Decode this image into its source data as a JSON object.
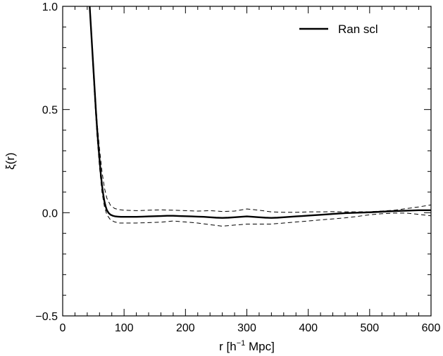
{
  "chart_data": {
    "type": "line",
    "title": "",
    "xlabel": {
      "main": "r [h",
      "sup": "−1",
      "tail": " Mpc]"
    },
    "ylabel": "ξ(r)",
    "xlim": [
      0,
      600
    ],
    "ylim": [
      -0.5,
      1.0
    ],
    "x_ticks": [
      0,
      100,
      200,
      300,
      400,
      500,
      600
    ],
    "x_tick_labels": [
      "0",
      "100",
      "200",
      "300",
      "400",
      "500",
      "600"
    ],
    "y_ticks": [
      -0.5,
      0.0,
      0.5,
      1.0
    ],
    "y_tick_labels": [
      "−0.5",
      "0.0",
      "0.5",
      "1.0"
    ],
    "x_minor_step": 20,
    "y_minor_step": 0.1,
    "grid": false,
    "legend": {
      "position": "top-right",
      "entries": [
        "Ran scl"
      ]
    },
    "series": [
      {
        "name": "Ran scl",
        "style": "solid",
        "x": [
          44,
          46,
          48,
          50,
          52,
          54,
          56,
          58,
          60,
          62,
          64,
          66,
          68,
          70,
          72,
          75,
          78,
          82,
          86,
          90,
          95,
          100,
          110,
          120,
          130,
          140,
          150,
          160,
          170,
          180,
          190,
          200,
          210,
          220,
          230,
          240,
          250,
          260,
          270,
          280,
          290,
          300,
          310,
          320,
          330,
          340,
          350,
          360,
          370,
          380,
          390,
          400,
          420,
          440,
          460,
          480,
          500,
          520,
          540,
          560,
          580,
          600
        ],
        "y": [
          1.0,
          0.9,
          0.8,
          0.7,
          0.6,
          0.5,
          0.41,
          0.33,
          0.26,
          0.19,
          0.135,
          0.09,
          0.055,
          0.03,
          0.012,
          -0.002,
          -0.01,
          -0.015,
          -0.018,
          -0.019,
          -0.02,
          -0.02,
          -0.02,
          -0.02,
          -0.019,
          -0.018,
          -0.017,
          -0.016,
          -0.015,
          -0.015,
          -0.016,
          -0.017,
          -0.018,
          -0.019,
          -0.02,
          -0.022,
          -0.024,
          -0.025,
          -0.024,
          -0.022,
          -0.02,
          -0.018,
          -0.02,
          -0.022,
          -0.024,
          -0.025,
          -0.024,
          -0.022,
          -0.02,
          -0.018,
          -0.016,
          -0.014,
          -0.01,
          -0.006,
          -0.002,
          0.0,
          0.002,
          0.005,
          0.008,
          0.01,
          0.012,
          0.012
        ]
      },
      {
        "name": "",
        "style": "dashed",
        "x": [
          44,
          48,
          52,
          56,
          60,
          64,
          68,
          72,
          78,
          85,
          92,
          100,
          120,
          140,
          160,
          180,
          200,
          220,
          240,
          260,
          280,
          300,
          320,
          340,
          360,
          380,
          400,
          420,
          440,
          460,
          480,
          500,
          520,
          540,
          560,
          580,
          600
        ],
        "y": [
          1.0,
          0.82,
          0.62,
          0.44,
          0.31,
          0.2,
          0.12,
          0.07,
          0.035,
          0.02,
          0.015,
          0.012,
          0.01,
          0.012,
          0.014,
          0.012,
          0.01,
          0.008,
          0.01,
          0.006,
          0.008,
          0.018,
          0.012,
          0.004,
          0.002,
          0.002,
          0.004,
          0.004,
          0.005,
          0.004,
          0.004,
          0.005,
          0.008,
          0.012,
          0.02,
          0.028,
          0.038
        ]
      },
      {
        "name": "",
        "style": "dashed",
        "x": [
          44,
          48,
          52,
          56,
          60,
          64,
          68,
          72,
          78,
          85,
          92,
          100,
          120,
          140,
          160,
          180,
          200,
          220,
          240,
          260,
          280,
          300,
          320,
          340,
          360,
          380,
          400,
          420,
          440,
          460,
          480,
          500,
          520,
          540,
          560,
          580,
          600
        ],
        "y": [
          1.0,
          0.78,
          0.56,
          0.37,
          0.22,
          0.1,
          0.03,
          -0.01,
          -0.035,
          -0.045,
          -0.05,
          -0.05,
          -0.05,
          -0.048,
          -0.046,
          -0.04,
          -0.045,
          -0.05,
          -0.058,
          -0.065,
          -0.06,
          -0.055,
          -0.055,
          -0.055,
          -0.05,
          -0.045,
          -0.04,
          -0.035,
          -0.03,
          -0.025,
          -0.018,
          -0.01,
          -0.005,
          -0.002,
          -0.002,
          -0.008,
          -0.015
        ]
      }
    ]
  }
}
